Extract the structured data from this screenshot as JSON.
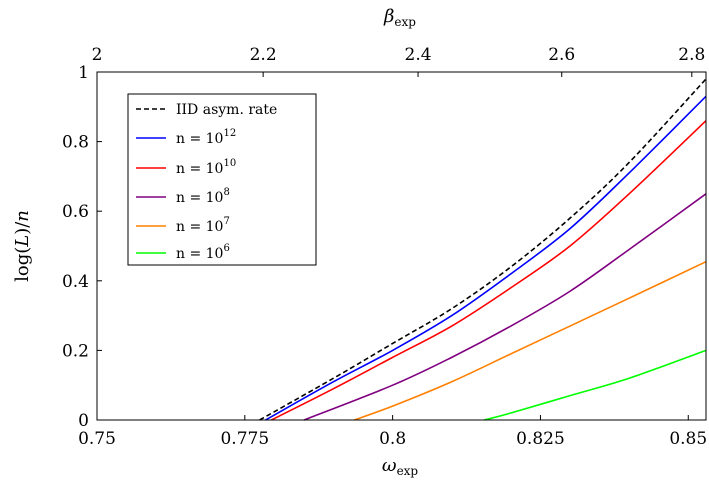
{
  "chart_data": {
    "type": "line",
    "xlabel": "ω_exp",
    "ylabel": "log(L)/n",
    "top_xlabel": "β_exp",
    "xlim": [
      0.75,
      0.853
    ],
    "ylim": [
      0,
      1
    ],
    "x_ticks": [
      "0.75",
      "0.775",
      "0.8",
      "0.825",
      "0.85"
    ],
    "y_ticks": [
      "0",
      "0.2",
      "0.4",
      "0.6",
      "0.8",
      "1"
    ],
    "top_x_ticks": [
      "2",
      "2.2",
      "2.4",
      "2.6",
      "2.8"
    ],
    "top_x_tick_positions": [
      0.75,
      0.7781,
      0.8043,
      0.8286,
      0.8506
    ],
    "grid": false,
    "legend_position": "top-left",
    "series": [
      {
        "name": "IID asym. rate",
        "color": "#000000",
        "dashed": true,
        "x": [
          0.7775,
          0.79,
          0.8,
          0.81,
          0.82,
          0.83,
          0.84,
          0.853
        ],
        "y": [
          0.0,
          0.12,
          0.22,
          0.32,
          0.44,
          0.58,
          0.74,
          0.98
        ]
      },
      {
        "name": "n = 10^12",
        "color": "#0000ff",
        "dashed": false,
        "x": [
          0.7785,
          0.79,
          0.8,
          0.81,
          0.82,
          0.83,
          0.84,
          0.853
        ],
        "y": [
          0.0,
          0.11,
          0.2,
          0.3,
          0.42,
          0.55,
          0.71,
          0.93
        ]
      },
      {
        "name": "n = 10^10",
        "color": "#ff0000",
        "dashed": false,
        "x": [
          0.7795,
          0.79,
          0.8,
          0.81,
          0.82,
          0.83,
          0.84,
          0.853
        ],
        "y": [
          0.0,
          0.09,
          0.18,
          0.27,
          0.38,
          0.5,
          0.65,
          0.86
        ]
      },
      {
        "name": "n = 10^8",
        "color": "#800080",
        "dashed": false,
        "x": [
          0.785,
          0.8,
          0.81,
          0.82,
          0.83,
          0.84,
          0.853
        ],
        "y": [
          0.0,
          0.1,
          0.18,
          0.27,
          0.37,
          0.49,
          0.65
        ]
      },
      {
        "name": "n = 10^7",
        "color": "#ff8000",
        "dashed": false,
        "x": [
          0.7935,
          0.8,
          0.81,
          0.82,
          0.83,
          0.84,
          0.853
        ],
        "y": [
          0.0,
          0.04,
          0.11,
          0.19,
          0.27,
          0.35,
          0.455
        ]
      },
      {
        "name": "n = 10^6",
        "color": "#00ff00",
        "dashed": false,
        "x": [
          0.8155,
          0.82,
          0.83,
          0.84,
          0.853
        ],
        "y": [
          0.0,
          0.02,
          0.07,
          0.12,
          0.2
        ]
      }
    ]
  },
  "legend": {
    "iid_label": "IID asym. rate",
    "n_prefix": "n = 10",
    "exponents": [
      "12",
      "10",
      "8",
      "7",
      "6"
    ]
  }
}
